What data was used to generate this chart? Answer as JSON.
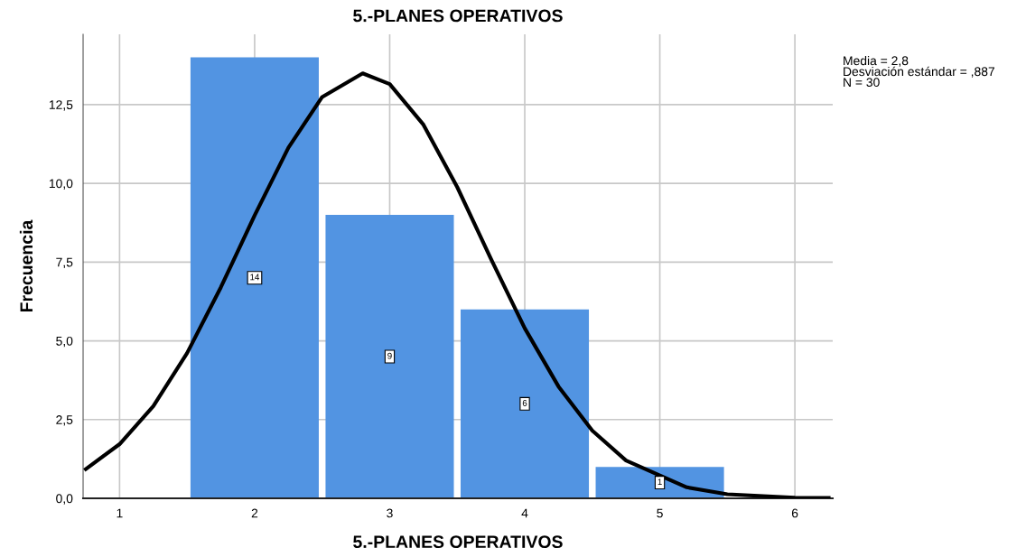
{
  "chart_data": {
    "type": "histogram",
    "title": "5.-PLANES OPERATIVOS",
    "xlabel": "5.-PLANES OPERATIVOS",
    "ylabel": "Frecuencia",
    "bins": [
      1.5,
      2.5,
      3.5,
      4.5,
      5.5
    ],
    "values": [
      14,
      9,
      6,
      1
    ],
    "color": "#5294e2",
    "value_labels": [
      "14",
      "9",
      "6",
      "1"
    ],
    "series": [
      {
        "type": "line",
        "color": "#000000",
        "x": [
          0.75,
          1.0,
          1.25,
          1.5,
          1.75,
          2.0,
          2.25,
          2.5,
          2.8,
          3.0,
          3.25,
          3.5,
          3.75,
          4.0,
          4.25,
          4.5,
          4.75,
          5.2,
          5.5,
          6.0,
          6.25
        ],
        "values": [
          0.93,
          1.72,
          2.93,
          4.61,
          6.7,
          8.98,
          11.13,
          12.74,
          13.49,
          13.15,
          11.86,
          9.88,
          7.6,
          5.4,
          3.55,
          2.15,
          1.2,
          0.35,
          0.13,
          0.02,
          0.01
        ]
      }
    ],
    "xlim": [
      0.73,
      6.28
    ],
    "ylim": [
      0,
      14.73
    ],
    "xticks": [
      1,
      2,
      3,
      4,
      5,
      6
    ],
    "yticks": [
      {
        "value": 0,
        "label": "0,0"
      },
      {
        "value": 2.5,
        "label": "2,5"
      },
      {
        "value": 5,
        "label": "5,0"
      },
      {
        "value": 7.5,
        "label": "7,5"
      },
      {
        "value": 10,
        "label": "10,0"
      },
      {
        "value": 12.5,
        "label": "12,5"
      }
    ],
    "grid": true,
    "legend": false,
    "annotations": [
      "Media = 2,8\nDesviación estándar = ,887\nN = 30"
    ]
  }
}
